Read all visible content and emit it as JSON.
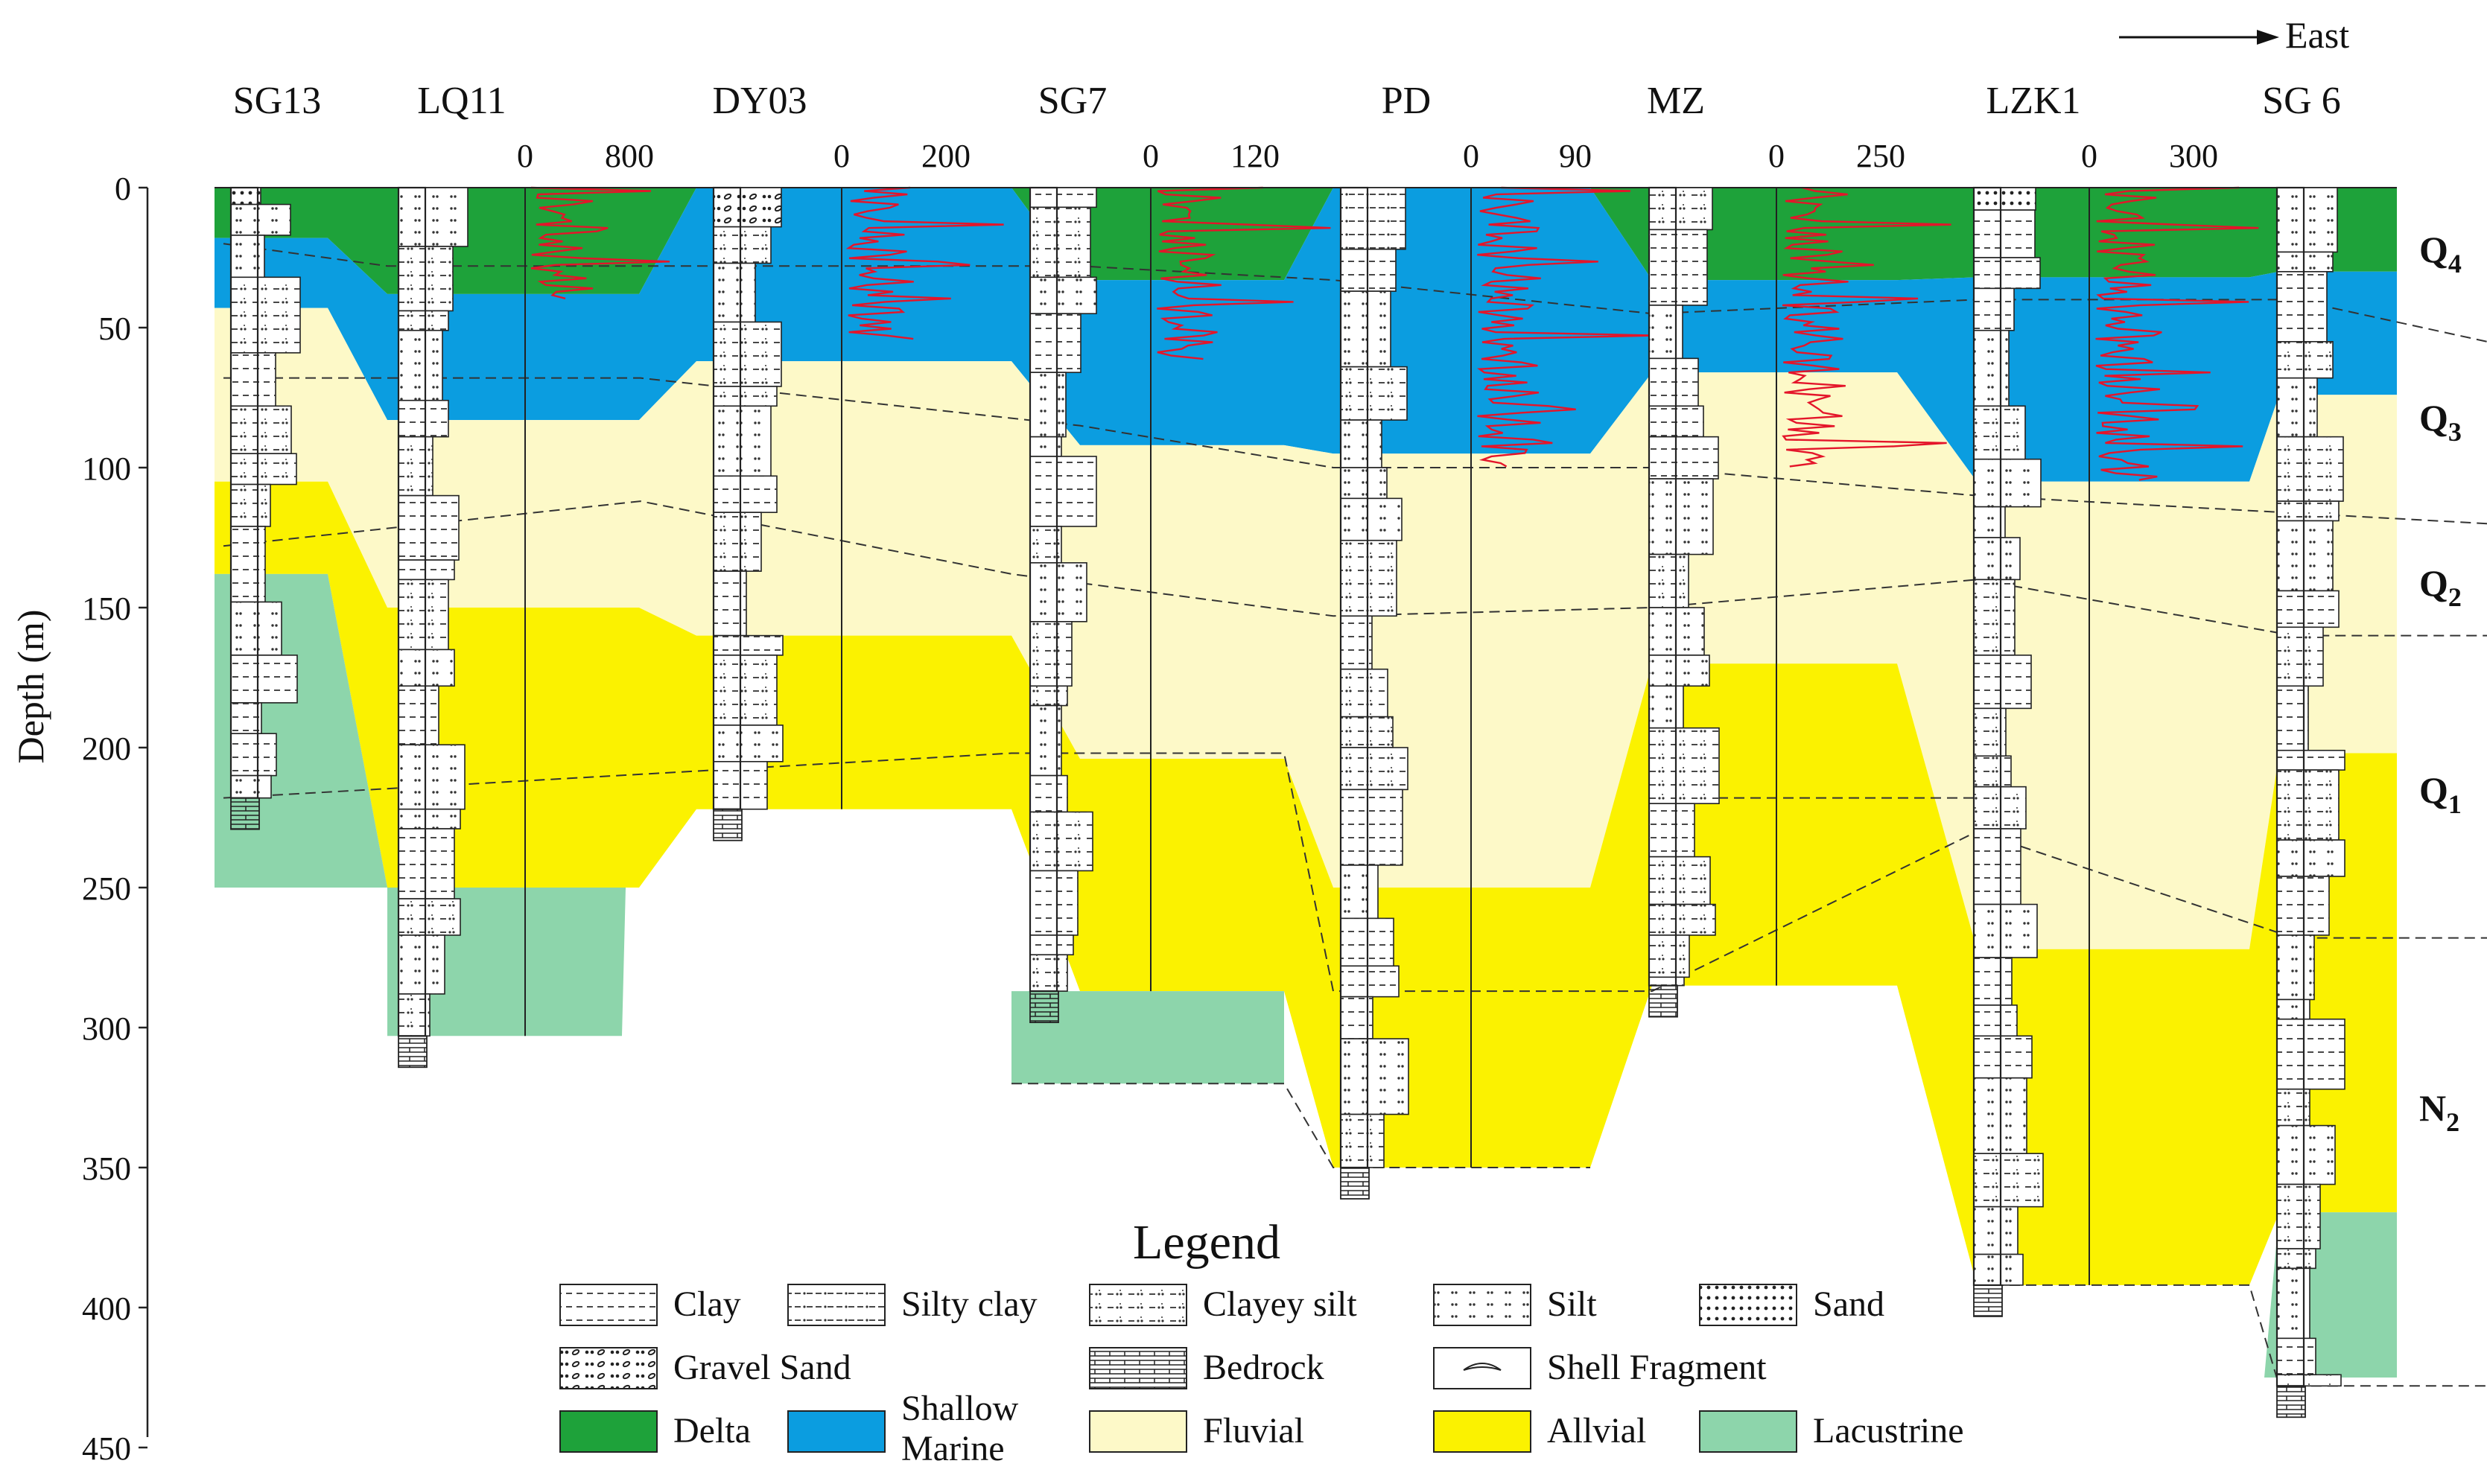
{
  "direction": {
    "label": "East"
  },
  "y_axis": {
    "label": "Depth (m)",
    "ticks": [
      "0",
      "50",
      "100",
      "150",
      "200",
      "250",
      "300",
      "350",
      "400",
      "450"
    ]
  },
  "wells": [
    {
      "name": "SG13",
      "scale_min": "",
      "scale_max": "",
      "bottom_m": 218
    },
    {
      "name": "LQ11",
      "scale_min": "0",
      "scale_max": "800",
      "bottom_m": 303
    },
    {
      "name": "DY03",
      "scale_min": "0",
      "scale_max": "200",
      "bottom_m": 222
    },
    {
      "name": "SG7",
      "scale_min": "0",
      "scale_max": "120",
      "bottom_m": 287
    },
    {
      "name": "PD",
      "scale_min": "0",
      "scale_max": "90",
      "bottom_m": 350
    },
    {
      "name": "MZ",
      "scale_min": "0",
      "scale_max": "250",
      "bottom_m": 285
    },
    {
      "name": "LZK1",
      "scale_min": "0",
      "scale_max": "300",
      "bottom_m": 392
    },
    {
      "name": "SG 6",
      "scale_min": "",
      "scale_max": "",
      "bottom_m": 428
    }
  ],
  "units": [
    {
      "base": "Q",
      "sub": "4"
    },
    {
      "base": "Q",
      "sub": "3"
    },
    {
      "base": "Q",
      "sub": "2"
    },
    {
      "base": "Q",
      "sub": "1"
    },
    {
      "base": "N",
      "sub": "2"
    }
  ],
  "facies_colors": {
    "delta": "#1ea23a",
    "shallow_marine": "#0b9de0",
    "fluvial": "#fdf9c8",
    "alluvial": "#fbf200",
    "lacustrine": "#8dd5ab"
  },
  "legend": {
    "title": "Legend",
    "lithology": [
      {
        "id": "clay",
        "label": "Clay"
      },
      {
        "id": "silty-clay",
        "label": "Silty clay"
      },
      {
        "id": "clayey-silt",
        "label": "Clayey  silt"
      },
      {
        "id": "silt",
        "label": "Silt"
      },
      {
        "id": "sand",
        "label": "Sand"
      },
      {
        "id": "gravel-sand",
        "label": "Gravel Sand"
      },
      {
        "id": "bedrock",
        "label": "Bedrock"
      },
      {
        "id": "shell-fragment",
        "label": "Shell Fragment"
      }
    ],
    "facies": [
      {
        "id": "delta",
        "label": "Delta"
      },
      {
        "id": "shallow-marine",
        "label": "Shallow",
        "label2": "Marine"
      },
      {
        "id": "fluvial",
        "label": "Fluvial"
      },
      {
        "id": "alluvial",
        "label": "Allvial"
      },
      {
        "id": "lacustrine",
        "label": "Lacustrine"
      }
    ]
  }
}
